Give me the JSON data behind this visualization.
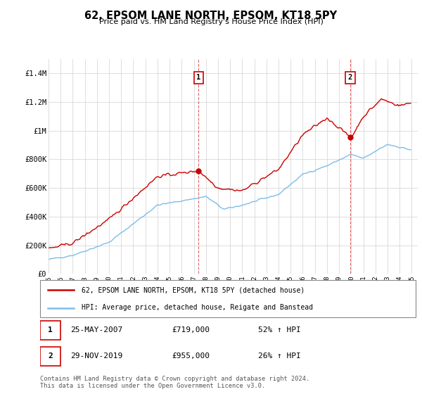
{
  "title": "62, EPSOM LANE NORTH, EPSOM, KT18 5PY",
  "subtitle": "Price paid vs. HM Land Registry's House Price Index (HPI)",
  "legend_line1": "62, EPSOM LANE NORTH, EPSOM, KT18 5PY (detached house)",
  "legend_line2": "HPI: Average price, detached house, Reigate and Banstead",
  "transaction1_date": "25-MAY-2007",
  "transaction1_price": "£719,000",
  "transaction1_hpi": "52% ↑ HPI",
  "transaction2_date": "29-NOV-2019",
  "transaction2_price": "£955,000",
  "transaction2_hpi": "26% ↑ HPI",
  "footnote": "Contains HM Land Registry data © Crown copyright and database right 2024.\nThis data is licensed under the Open Government Licence v3.0.",
  "hpi_color": "#7dbde8",
  "price_color": "#cc0000",
  "ylim": [
    0,
    1500000
  ],
  "yticks": [
    0,
    200000,
    400000,
    600000,
    800000,
    1000000,
    1200000,
    1400000
  ],
  "ytick_labels": [
    "£0",
    "£200K",
    "£400K",
    "£600K",
    "£800K",
    "£1M",
    "£1.2M",
    "£1.4M"
  ],
  "background_color": "#ffffff",
  "grid_color": "#d0d0d0"
}
